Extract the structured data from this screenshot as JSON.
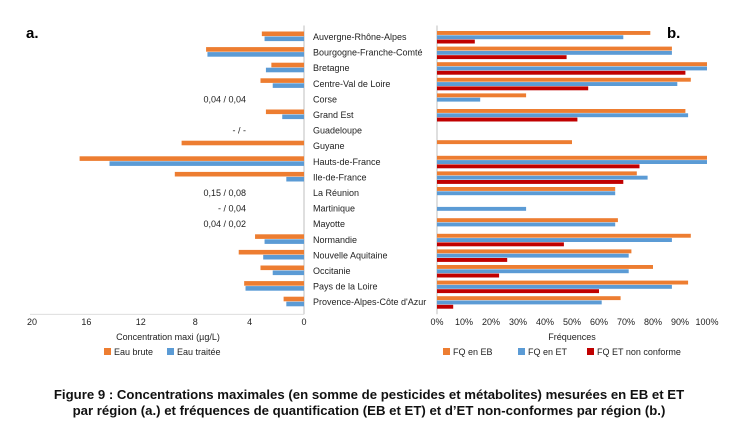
{
  "colors": {
    "eb": "#ED7D31",
    "et": "#5B9BD5",
    "nc": "#C00000",
    "axis": "#BFBFBF",
    "text": "#222222"
  },
  "caption": {
    "line1": "Figure 9 : Concentrations maximales (en somme de pesticides et métabolites) mesurées en EB et ET",
    "line2": "par région (a.) et fréquences de quantification (EB et ET) et d’ET non-conformes par région (b.)"
  },
  "chart_data": [
    {
      "panel_label": "a.",
      "type": "bar",
      "orientation": "horizontal",
      "direction": "reversed",
      "xlabel": "Concentration maxi (µg/L)",
      "xlim": [
        0,
        20
      ],
      "xticks": [
        "20",
        "16",
        "12",
        "8",
        "4",
        "0"
      ],
      "legend_position": "bottom",
      "categories": [
        "Auvergne-Rhône-Alpes",
        "Bourgogne-Franche-Comté",
        "Bretagne",
        "Centre-Val de Loire",
        "Corse",
        "Grand Est",
        "Guadeloupe",
        "Guyane",
        "Hauts-de-France",
        "Ile-de-France",
        "La Réunion",
        "Martinique",
        "Mayotte",
        "Normandie",
        "Nouvelle Aquitaine",
        "Occitanie",
        "Pays de la Loire",
        "Provence-Alpes-Côte d'Azur"
      ],
      "series": [
        {
          "name": "Eau brute",
          "values": [
            3.1,
            7.2,
            2.4,
            3.2,
            0.04,
            2.8,
            null,
            9.0,
            16.5,
            9.5,
            0.15,
            null,
            0.04,
            3.6,
            4.8,
            3.2,
            4.4,
            1.5
          ]
        },
        {
          "name": "Eau traitée",
          "values": [
            2.9,
            7.1,
            2.8,
            2.3,
            0.04,
            1.6,
            null,
            null,
            14.3,
            1.3,
            0.08,
            0.04,
            0.02,
            2.9,
            3.0,
            2.3,
            4.3,
            1.3
          ]
        }
      ],
      "annotations": [
        {
          "category": "Corse",
          "text": "0,04 / 0,04"
        },
        {
          "category": "Guadeloupe",
          "text": "- / -"
        },
        {
          "category": "La Réunion",
          "text": "0,15 / 0,08"
        },
        {
          "category": "Martinique",
          "text": "- / 0,04"
        },
        {
          "category": "Mayotte",
          "text": "0,04 / 0,02"
        }
      ]
    },
    {
      "panel_label": "b.",
      "type": "bar",
      "orientation": "horizontal",
      "xlabel": "Fréquences",
      "xlim": [
        0,
        100
      ],
      "xticks": [
        "0%",
        "10%",
        "20%",
        "30%",
        "40%",
        "50%",
        "60%",
        "70%",
        "80%",
        "90%",
        "100%"
      ],
      "legend_position": "bottom",
      "categories": [
        "Auvergne-Rhône-Alpes",
        "Bourgogne-Franche-Comté",
        "Bretagne",
        "Centre-Val de Loire",
        "Corse",
        "Grand Est",
        "Guadeloupe",
        "Guyane",
        "Hauts-de-France",
        "Ile-de-France",
        "La Réunion",
        "Martinique",
        "Mayotte",
        "Normandie",
        "Nouvelle Aquitaine",
        "Occitanie",
        "Pays de la Loire",
        "Provence-Alpes-Côte d'Azur"
      ],
      "series": [
        {
          "name": "FQ en EB",
          "values": [
            79,
            87,
            100,
            94,
            33,
            92,
            0,
            50,
            100,
            74,
            66,
            0,
            67,
            94,
            72,
            80,
            93,
            68
          ]
        },
        {
          "name": "FQ en ET",
          "values": [
            69,
            87,
            100,
            89,
            16,
            93,
            0,
            0,
            100,
            78,
            66,
            33,
            66,
            87,
            71,
            71,
            87,
            61
          ]
        },
        {
          "name": "FQ ET non conforme",
          "values": [
            14,
            48,
            92,
            56,
            0,
            52,
            0,
            0,
            75,
            69,
            0,
            0,
            0,
            47,
            26,
            23,
            60,
            6
          ]
        }
      ]
    }
  ]
}
